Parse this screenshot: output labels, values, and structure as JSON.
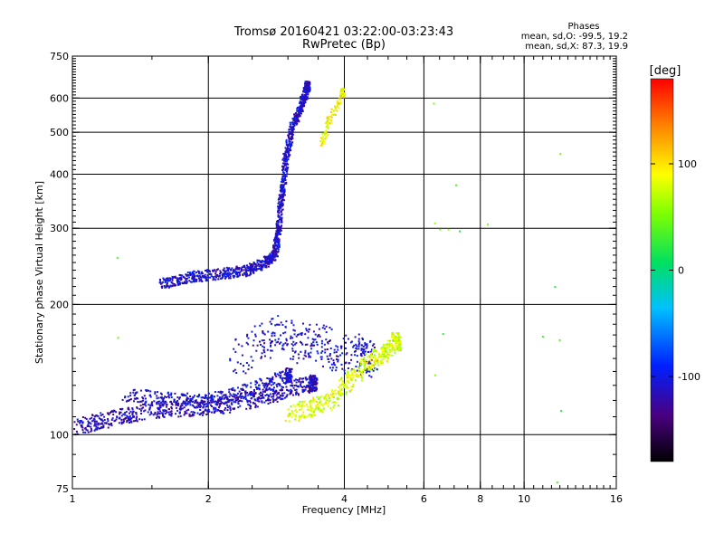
{
  "chart_data": {
    "type": "scatter",
    "title": "Tromsø 20160421 03:22:00-03:23:43",
    "subtitle": "RwPretec (Bp)",
    "xlabel": "Frequency [MHz]",
    "ylabel": "Stationary phase Virtual Height [km]",
    "x_scale": "log",
    "y_scale": "log",
    "xlim": [
      1,
      16
    ],
    "ylim": [
      75,
      750
    ],
    "x_ticks": [
      {
        "value": 1,
        "label": "1"
      },
      {
        "value": 2,
        "label": "2"
      },
      {
        "value": 4,
        "label": "4"
      },
      {
        "value": 6,
        "label": "6"
      },
      {
        "value": 8,
        "label": "8"
      },
      {
        "value": 10,
        "label": "10"
      },
      {
        "value": 16,
        "label": "16"
      }
    ],
    "y_ticks": [
      {
        "value": 75,
        "label": "75"
      },
      {
        "value": 100,
        "label": "100"
      },
      {
        "value": 200,
        "label": "200"
      },
      {
        "value": 300,
        "label": "300"
      },
      {
        "value": 400,
        "label": "400"
      },
      {
        "value": 500,
        "label": "500"
      },
      {
        "value": 600,
        "label": "600"
      },
      {
        "value": 750,
        "label": "750"
      }
    ],
    "grid_x": [
      2,
      4,
      6,
      8,
      10
    ],
    "grid_y": [
      100,
      200,
      300,
      400,
      500,
      600
    ],
    "stats": {
      "heading": "Phases",
      "line_o": "mean, sd,O: -99.5, 19.2",
      "line_x": "mean, sd,X: 87.3, 19.9"
    },
    "colorbar": {
      "label": "[deg]",
      "range": [
        -180,
        180
      ],
      "ticks": [
        {
          "value": 100,
          "label": "100"
        },
        {
          "value": 0,
          "label": "0"
        },
        {
          "value": -100,
          "label": "-100"
        }
      ]
    },
    "traces": [
      {
        "name": "lower-o-trace",
        "phase": -115,
        "spread": 18,
        "density": 90,
        "points": [
          [
            1.0,
            104
          ],
          [
            1.15,
            108
          ],
          [
            1.35,
            112
          ],
          [
            1.6,
            115
          ],
          [
            1.9,
            116
          ],
          [
            2.2,
            118
          ],
          [
            2.6,
            122
          ],
          [
            3.0,
            128
          ],
          [
            3.4,
            132
          ]
        ]
      },
      {
        "name": "lower-o-band2",
        "phase": -110,
        "spread": 15,
        "density": 70,
        "points": [
          [
            1.3,
            124
          ],
          [
            1.6,
            122
          ],
          [
            1.9,
            120
          ],
          [
            2.2,
            123
          ],
          [
            2.6,
            130
          ],
          [
            3.0,
            138
          ]
        ]
      },
      {
        "name": "lower-scatter-cloud",
        "phase": -110,
        "spread": 40,
        "density": 45,
        "points": [
          [
            2.3,
            150
          ],
          [
            2.6,
            165
          ],
          [
            2.9,
            175
          ],
          [
            3.2,
            160
          ],
          [
            3.5,
            170
          ],
          [
            3.8,
            150
          ],
          [
            4.2,
            160
          ],
          [
            4.5,
            150
          ]
        ]
      },
      {
        "name": "lower-x-trace",
        "phase": 80,
        "spread": 20,
        "density": 70,
        "points": [
          [
            3.0,
            112
          ],
          [
            3.4,
            116
          ],
          [
            3.8,
            122
          ],
          [
            4.1,
            135
          ],
          [
            4.5,
            148
          ],
          [
            4.9,
            155
          ],
          [
            5.2,
            165
          ]
        ]
      },
      {
        "name": "f-layer-o-trace",
        "phase": -110,
        "spread": 12,
        "density": 110,
        "points": [
          [
            1.55,
            223
          ],
          [
            1.8,
            232
          ],
          [
            2.1,
            236
          ],
          [
            2.4,
            240
          ],
          [
            2.65,
            250
          ],
          [
            2.8,
            262
          ],
          [
            2.85,
            300
          ],
          [
            2.9,
            360
          ],
          [
            2.95,
            430
          ],
          [
            3.05,
            510
          ],
          [
            3.2,
            575
          ],
          [
            3.3,
            640
          ]
        ]
      },
      {
        "name": "f-layer-x-trace",
        "phase": 90,
        "spread": 10,
        "density": 30,
        "points": [
          [
            3.55,
            470
          ],
          [
            3.65,
            520
          ],
          [
            3.8,
            570
          ],
          [
            3.95,
            620
          ]
        ]
      },
      {
        "name": "isolated-echoes",
        "phase": 40,
        "spread": 5,
        "density": 1,
        "points": [
          [
            1.25,
            256
          ],
          [
            1.25,
            170
          ],
          [
            6.3,
            310
          ],
          [
            6.5,
            298
          ],
          [
            6.8,
            300
          ],
          [
            7.0,
            380
          ],
          [
            7.2,
            300
          ],
          [
            8.3,
            310
          ],
          [
            11.0,
            170
          ],
          [
            11.7,
            220
          ],
          [
            12.0,
            450
          ],
          [
            12.0,
            165
          ],
          [
            12.0,
            115
          ],
          [
            11.8,
            77
          ],
          [
            6.3,
            590
          ],
          [
            6.6,
            170
          ],
          [
            6.3,
            137
          ]
        ]
      }
    ]
  }
}
